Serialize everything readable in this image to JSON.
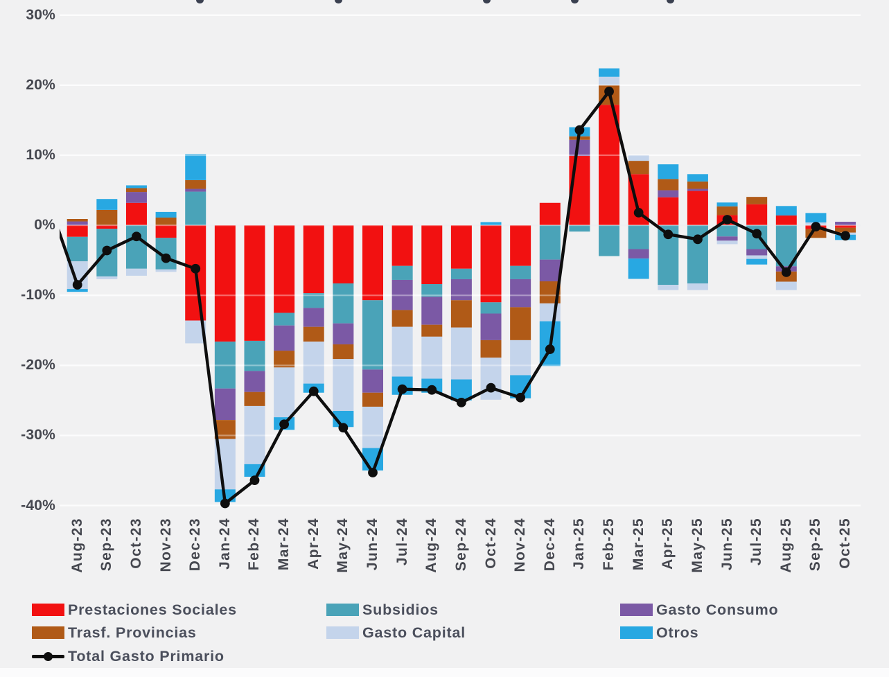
{
  "chart_data": {
    "type": "bar",
    "stacked": true,
    "bar_and_line": true,
    "title": "",
    "xlabel": "",
    "ylabel": "",
    "ylim": [
      -43,
      31.5
    ],
    "grid": true,
    "legend_position": "bottom",
    "ytick_labels": [
      "30%",
      "20%",
      "10%",
      "0%",
      "-10%",
      "-20%",
      "-30%",
      "-40%"
    ],
    "ytick_values": [
      30,
      20,
      10,
      0,
      -10,
      -20,
      -30,
      -40
    ],
    "categories": [
      "Aug-23",
      "Sep-23",
      "Oct-23",
      "Nov-23",
      "Dec-23",
      "Jan-24",
      "Feb-24",
      "Mar-24",
      "Apr-24",
      "May-24",
      "Jun-24",
      "Jul-24",
      "Aug-24",
      "Sep-24",
      "Oct-24",
      "Nov-24",
      "Dec-24",
      "Jan-25",
      "Feb-25",
      "Mar-25",
      "Apr-25",
      "May-25",
      "Jun-25",
      "Jul-25",
      "Aug-25",
      "Sep-25",
      "Oct-25"
    ],
    "series": [
      {
        "name": "Prestaciones Sociales",
        "color": "#f21111",
        "values": [
          -1.65,
          -0.5,
          3.2,
          -1.8,
          -13.6,
          -16.6,
          -16.5,
          -12.5,
          -9.7,
          -8.3,
          -10.7,
          -5.8,
          -8.4,
          -6.2,
          -11.0,
          -5.8,
          3.2,
          9.9,
          17.2,
          7.3,
          4.0,
          4.9,
          1.45,
          3.0,
          1.4,
          -0.55,
          -0.35
        ]
      },
      {
        "name": "Subsidios",
        "color": "#4aa3b8",
        "values": [
          -3.5,
          -6.8,
          -6.2,
          -4.5,
          4.8,
          -6.7,
          -4.3,
          -1.8,
          -2.1,
          -5.7,
          -9.9,
          -2.0,
          -1.8,
          -1.5,
          -1.6,
          -1.9,
          -4.9,
          -0.9,
          -4.4,
          -3.4,
          -8.5,
          -8.3,
          -1.6,
          -3.4,
          -5.85,
          0,
          0
        ]
      },
      {
        "name": "Gasto Consumo",
        "color": "#7b59a5",
        "values": [
          0.55,
          0,
          1.55,
          0,
          0.4,
          -4.5,
          -3.0,
          -3.6,
          -2.7,
          -3.0,
          -3.3,
          -4.3,
          -4.0,
          -3.0,
          -3.8,
          -4.0,
          -3.1,
          2.3,
          0,
          -1.35,
          1.0,
          0.3,
          -0.6,
          -0.9,
          -0.75,
          0,
          0.5
        ]
      },
      {
        "name": "Trasf. Provincias",
        "color": "#b05a17",
        "values": [
          0.35,
          2.2,
          0.55,
          1.1,
          1.25,
          -2.7,
          -2.0,
          -2.4,
          -2.1,
          -2.1,
          -2.0,
          -2.4,
          -1.7,
          -3.9,
          -2.5,
          -4.7,
          -3.15,
          0.5,
          2.8,
          1.9,
          1.6,
          1.05,
          1.25,
          1.05,
          -1.45,
          -1.25,
          -0.7
        ]
      },
      {
        "name": "Gasto Capital",
        "color": "#c4d4eb",
        "values": [
          -3.95,
          -0.4,
          -1.0,
          -0.35,
          -3.25,
          -7.2,
          -8.3,
          -7.1,
          -6.0,
          -7.4,
          -5.9,
          -7.1,
          -6.0,
          -7.4,
          -6.0,
          -5.0,
          -2.55,
          0,
          1.2,
          0.8,
          -0.75,
          -0.95,
          -0.5,
          -0.5,
          -1.2,
          0.4,
          -0.3
        ]
      },
      {
        "name": "Otros",
        "color": "#28a8e2",
        "values": [
          -0.4,
          1.55,
          0.4,
          0.8,
          3.7,
          -1.8,
          -1.8,
          -1.8,
          -1.3,
          -2.3,
          -3.2,
          -2.6,
          -2.0,
          -3.0,
          0.45,
          -3.3,
          -6.4,
          1.3,
          1.2,
          -2.9,
          2.1,
          1.05,
          0.55,
          -0.8,
          1.35,
          1.35,
          -0.75
        ]
      }
    ],
    "line_series": {
      "name": "Total Gasto Primario",
      "color": "#0e0e0e",
      "values": [
        -8.5,
        -3.6,
        -1.6,
        -4.7,
        -6.2,
        -39.7,
        -36.4,
        -28.4,
        -23.7,
        -28.9,
        -35.3,
        -23.4,
        -23.5,
        -25.3,
        -23.2,
        -24.6,
        -17.7,
        13.6,
        19.1,
        1.8,
        -1.3,
        -2.0,
        0.8,
        -1.2,
        -6.7,
        -0.2,
        -1.5
      ],
      "prev_point_clipped_value": 3.7
    }
  },
  "legend": {
    "col1": [
      {
        "label": "Prestaciones Sociales",
        "series": "Prestaciones Sociales"
      },
      {
        "label": "Trasf. Provincias",
        "series": "Trasf. Provincias"
      },
      {
        "label": "Total Gasto Primario",
        "series": "Total Gasto Primario"
      }
    ],
    "col2": [
      {
        "label": "Subsidios",
        "series": "Subsidios"
      },
      {
        "label": "Gasto Capital",
        "series": "Gasto Capital"
      }
    ],
    "col3": [
      {
        "label": "Gasto Consumo",
        "series": "Gasto Consumo"
      },
      {
        "label": "Otros",
        "series": "Otros"
      }
    ]
  },
  "colors": {
    "background": "#f1f1f2",
    "gridline": "#fafbfc",
    "zero_line": "#e3e5e8",
    "axis_text": "#45474f",
    "legend_text": "#4b4f5c"
  },
  "decor": {
    "cropped_title_marks_x": [
      283,
      483,
      697,
      824,
      962
    ]
  }
}
